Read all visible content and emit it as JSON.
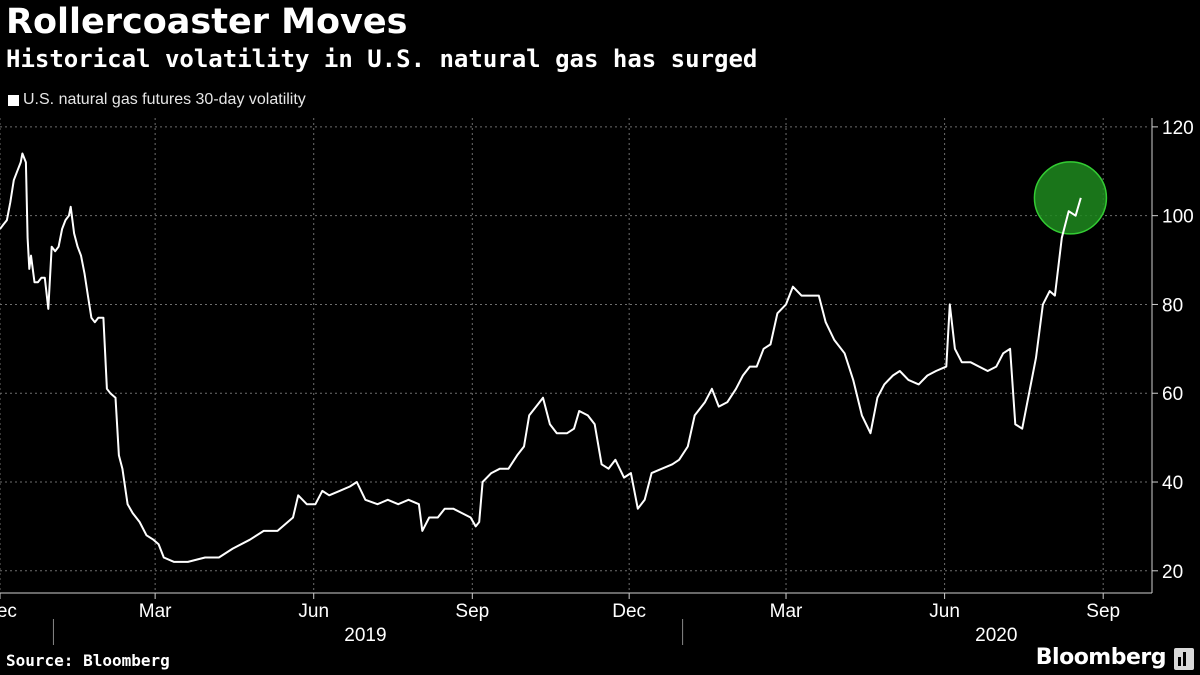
{
  "header": {
    "title": "Rollercoaster Moves",
    "subtitle": "Historical volatility in U.S. natural gas has surged"
  },
  "footer": {
    "source": "Source: Bloomberg",
    "brand": "Bloomberg",
    "brand_icon": "bloomberg-terminal-icon"
  },
  "colors": {
    "background": "#000000",
    "line": "#ffffff",
    "grid": "#6e6e6e",
    "highlight_fill": "#1f8a1f",
    "highlight_stroke": "#33cc33"
  },
  "chart_data": {
    "type": "line",
    "x_scale": "time",
    "xlim": [
      "2018-12-01",
      "2020-09-27"
    ],
    "ylim": [
      15,
      122
    ],
    "y_axis_position": "right",
    "yticks": [
      20,
      40,
      60,
      80,
      100,
      120
    ],
    "xticks": [
      {
        "label": "Dec",
        "date": "2018-12-01"
      },
      {
        "label": "Mar",
        "date": "2019-03-01"
      },
      {
        "label": "Jun",
        "date": "2019-06-01"
      },
      {
        "label": "Sep",
        "date": "2019-09-01"
      },
      {
        "label": "Dec",
        "date": "2019-12-01"
      },
      {
        "label": "Mar",
        "date": "2020-03-01"
      },
      {
        "label": "Jun",
        "date": "2020-06-01"
      },
      {
        "label": "Sep",
        "date": "2020-09-01"
      }
    ],
    "year_labels": [
      {
        "label": "2019",
        "date": "2019-07-01"
      },
      {
        "label": "2020",
        "date": "2020-07-01"
      }
    ],
    "year_separators": [
      "2019-01-01",
      "2020-01-01"
    ],
    "grid": true,
    "legend_position": "top-left",
    "series": [
      {
        "name": "U.S. natural gas futures 30-day volatility",
        "points": [
          [
            "2018-12-01",
            97
          ],
          [
            "2018-12-03",
            98
          ],
          [
            "2018-12-05",
            99
          ],
          [
            "2018-12-07",
            103
          ],
          [
            "2018-12-09",
            108
          ],
          [
            "2018-12-11",
            110
          ],
          [
            "2018-12-13",
            112
          ],
          [
            "2018-12-14",
            114
          ],
          [
            "2018-12-16",
            112
          ],
          [
            "2018-12-17",
            95
          ],
          [
            "2018-12-18",
            88
          ],
          [
            "2018-12-19",
            91
          ],
          [
            "2018-12-21",
            85
          ],
          [
            "2018-12-23",
            85
          ],
          [
            "2018-12-25",
            86
          ],
          [
            "2018-12-27",
            86
          ],
          [
            "2018-12-29",
            79
          ],
          [
            "2018-12-31",
            93
          ],
          [
            "2019-01-02",
            92
          ],
          [
            "2019-01-04",
            93
          ],
          [
            "2019-01-06",
            97
          ],
          [
            "2019-01-08",
            99
          ],
          [
            "2019-01-10",
            100
          ],
          [
            "2019-01-11",
            102
          ],
          [
            "2019-01-13",
            96
          ],
          [
            "2019-01-15",
            93
          ],
          [
            "2019-01-17",
            91
          ],
          [
            "2019-01-19",
            87
          ],
          [
            "2019-01-21",
            82
          ],
          [
            "2019-01-23",
            77
          ],
          [
            "2019-01-25",
            76
          ],
          [
            "2019-01-27",
            77
          ],
          [
            "2019-01-30",
            77
          ],
          [
            "2019-02-01",
            61
          ],
          [
            "2019-02-03",
            60
          ],
          [
            "2019-02-06",
            59
          ],
          [
            "2019-02-08",
            46
          ],
          [
            "2019-02-10",
            43
          ],
          [
            "2019-02-13",
            35
          ],
          [
            "2019-02-16",
            33
          ],
          [
            "2019-02-20",
            31
          ],
          [
            "2019-02-24",
            28
          ],
          [
            "2019-02-28",
            27
          ],
          [
            "2019-03-03",
            26
          ],
          [
            "2019-03-06",
            23
          ],
          [
            "2019-03-12",
            22
          ],
          [
            "2019-03-20",
            22
          ],
          [
            "2019-03-30",
            23
          ],
          [
            "2019-04-07",
            23
          ],
          [
            "2019-04-15",
            25
          ],
          [
            "2019-04-25",
            27
          ],
          [
            "2019-05-03",
            29
          ],
          [
            "2019-05-11",
            29
          ],
          [
            "2019-05-20",
            32
          ],
          [
            "2019-05-23",
            37
          ],
          [
            "2019-05-28",
            35
          ],
          [
            "2019-06-02",
            35
          ],
          [
            "2019-06-06",
            38
          ],
          [
            "2019-06-10",
            37
          ],
          [
            "2019-06-16",
            38
          ],
          [
            "2019-06-22",
            39
          ],
          [
            "2019-06-26",
            40
          ],
          [
            "2019-07-01",
            36
          ],
          [
            "2019-07-08",
            35
          ],
          [
            "2019-07-14",
            36
          ],
          [
            "2019-07-20",
            35
          ],
          [
            "2019-07-26",
            36
          ],
          [
            "2019-08-01",
            35
          ],
          [
            "2019-08-03",
            29
          ],
          [
            "2019-08-07",
            32
          ],
          [
            "2019-08-12",
            32
          ],
          [
            "2019-08-16",
            34
          ],
          [
            "2019-08-21",
            34
          ],
          [
            "2019-08-26",
            33
          ],
          [
            "2019-08-31",
            32
          ],
          [
            "2019-09-03",
            30
          ],
          [
            "2019-09-05",
            31
          ],
          [
            "2019-09-07",
            40
          ],
          [
            "2019-09-12",
            42
          ],
          [
            "2019-09-17",
            43
          ],
          [
            "2019-09-22",
            43
          ],
          [
            "2019-09-27",
            46
          ],
          [
            "2019-10-01",
            48
          ],
          [
            "2019-10-04",
            55
          ],
          [
            "2019-10-08",
            57
          ],
          [
            "2019-10-12",
            59
          ],
          [
            "2019-10-16",
            53
          ],
          [
            "2019-10-20",
            51
          ],
          [
            "2019-10-26",
            51
          ],
          [
            "2019-10-30",
            52
          ],
          [
            "2019-11-02",
            56
          ],
          [
            "2019-11-07",
            55
          ],
          [
            "2019-11-11",
            53
          ],
          [
            "2019-11-15",
            44
          ],
          [
            "2019-11-19",
            43
          ],
          [
            "2019-11-23",
            45
          ],
          [
            "2019-11-28",
            41
          ],
          [
            "2019-12-02",
            42
          ],
          [
            "2019-12-06",
            34
          ],
          [
            "2019-12-10",
            36
          ],
          [
            "2019-12-14",
            42
          ],
          [
            "2019-12-20",
            43
          ],
          [
            "2019-12-26",
            44
          ],
          [
            "2019-12-30",
            45
          ],
          [
            "2020-01-04",
            48
          ],
          [
            "2020-01-08",
            55
          ],
          [
            "2020-01-14",
            58
          ],
          [
            "2020-01-18",
            61
          ],
          [
            "2020-01-22",
            57
          ],
          [
            "2020-01-27",
            58
          ],
          [
            "2020-02-01",
            61
          ],
          [
            "2020-02-05",
            64
          ],
          [
            "2020-02-09",
            66
          ],
          [
            "2020-02-13",
            66
          ],
          [
            "2020-02-17",
            70
          ],
          [
            "2020-02-21",
            71
          ],
          [
            "2020-02-25",
            78
          ],
          [
            "2020-03-01",
            80
          ],
          [
            "2020-03-05",
            84
          ],
          [
            "2020-03-10",
            82
          ],
          [
            "2020-03-15",
            82
          ],
          [
            "2020-03-20",
            82
          ],
          [
            "2020-03-24",
            76
          ],
          [
            "2020-03-29",
            72
          ],
          [
            "2020-04-04",
            69
          ],
          [
            "2020-04-09",
            63
          ],
          [
            "2020-04-14",
            55
          ],
          [
            "2020-04-19",
            51
          ],
          [
            "2020-04-23",
            59
          ],
          [
            "2020-04-27",
            62
          ],
          [
            "2020-05-02",
            64
          ],
          [
            "2020-05-06",
            65
          ],
          [
            "2020-05-11",
            63
          ],
          [
            "2020-05-17",
            62
          ],
          [
            "2020-05-22",
            64
          ],
          [
            "2020-05-27",
            65
          ],
          [
            "2020-06-02",
            66
          ],
          [
            "2020-06-04",
            80
          ],
          [
            "2020-06-07",
            70
          ],
          [
            "2020-06-11",
            67
          ],
          [
            "2020-06-16",
            67
          ],
          [
            "2020-06-21",
            66
          ],
          [
            "2020-06-26",
            65
          ],
          [
            "2020-07-01",
            66
          ],
          [
            "2020-07-05",
            69
          ],
          [
            "2020-07-09",
            70
          ],
          [
            "2020-07-12",
            53
          ],
          [
            "2020-07-16",
            52
          ],
          [
            "2020-07-20",
            60
          ],
          [
            "2020-07-24",
            68
          ],
          [
            "2020-07-28",
            80
          ],
          [
            "2020-08-01",
            83
          ],
          [
            "2020-08-04",
            82
          ],
          [
            "2020-08-08",
            95
          ],
          [
            "2020-08-12",
            101
          ],
          [
            "2020-08-16",
            100
          ],
          [
            "2020-08-19",
            104
          ]
        ]
      }
    ],
    "highlight": {
      "shape": "circle",
      "center": [
        "2020-08-13",
        104
      ]
    }
  }
}
